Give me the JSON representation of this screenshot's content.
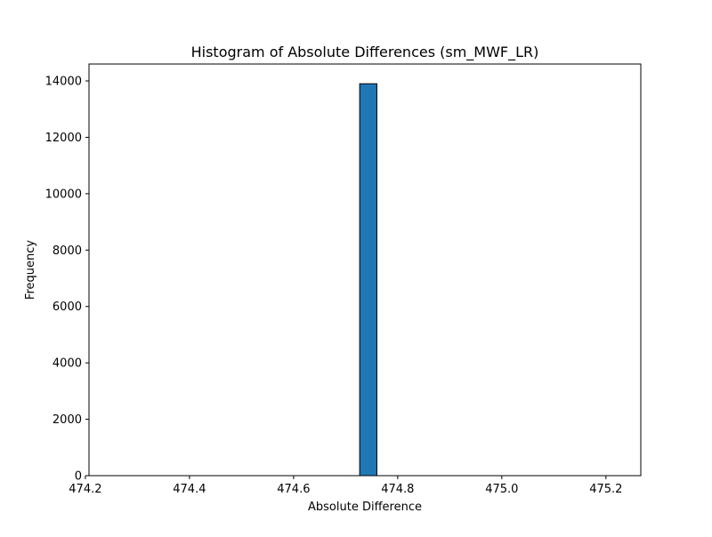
{
  "chart_data": {
    "type": "bar",
    "subtype": "histogram",
    "title": "Histogram of Absolute Differences (sm_MWF_LR)",
    "xlabel": "Absolute Difference",
    "ylabel": "Frequency",
    "xlim": [
      474.207,
      475.267
    ],
    "ylim": [
      0,
      14600
    ],
    "xticks": [
      474.2,
      474.4,
      474.6,
      474.8,
      475.0,
      475.2
    ],
    "xtick_labels": [
      "474.2",
      "474.4",
      "474.6",
      "474.8",
      "475.0",
      "475.2"
    ],
    "yticks": [
      0,
      2000,
      4000,
      6000,
      8000,
      10000,
      12000,
      14000
    ],
    "ytick_labels": [
      "0",
      "2000",
      "4000",
      "6000",
      "8000",
      "10000",
      "12000",
      "14000"
    ],
    "bins": [
      {
        "x0": 474.227,
        "x1": 474.26,
        "count": 0
      },
      {
        "x0": 474.26,
        "x1": 474.293,
        "count": 0
      },
      {
        "x0": 474.293,
        "x1": 474.327,
        "count": 0
      },
      {
        "x0": 474.327,
        "x1": 474.36,
        "count": 0
      },
      {
        "x0": 474.36,
        "x1": 474.393,
        "count": 0
      },
      {
        "x0": 474.393,
        "x1": 474.427,
        "count": 0
      },
      {
        "x0": 474.427,
        "x1": 474.46,
        "count": 0
      },
      {
        "x0": 474.46,
        "x1": 474.493,
        "count": 0
      },
      {
        "x0": 474.493,
        "x1": 474.527,
        "count": 0
      },
      {
        "x0": 474.527,
        "x1": 474.56,
        "count": 0
      },
      {
        "x0": 474.56,
        "x1": 474.593,
        "count": 0
      },
      {
        "x0": 474.593,
        "x1": 474.627,
        "count": 0
      },
      {
        "x0": 474.627,
        "x1": 474.66,
        "count": 0
      },
      {
        "x0": 474.66,
        "x1": 474.693,
        "count": 0
      },
      {
        "x0": 474.693,
        "x1": 474.727,
        "count": 0
      },
      {
        "x0": 474.727,
        "x1": 474.76,
        "count": 13900
      },
      {
        "x0": 474.76,
        "x1": 474.793,
        "count": 0
      },
      {
        "x0": 474.793,
        "x1": 474.827,
        "count": 0
      },
      {
        "x0": 474.827,
        "x1": 474.86,
        "count": 0
      },
      {
        "x0": 474.86,
        "x1": 474.893,
        "count": 0
      },
      {
        "x0": 474.893,
        "x1": 474.927,
        "count": 0
      },
      {
        "x0": 474.927,
        "x1": 474.96,
        "count": 0
      },
      {
        "x0": 474.96,
        "x1": 474.993,
        "count": 0
      },
      {
        "x0": 474.993,
        "x1": 475.027,
        "count": 0
      },
      {
        "x0": 475.027,
        "x1": 475.06,
        "count": 0
      },
      {
        "x0": 475.06,
        "x1": 475.093,
        "count": 0
      },
      {
        "x0": 475.093,
        "x1": 475.127,
        "count": 0
      },
      {
        "x0": 475.127,
        "x1": 475.16,
        "count": 0
      },
      {
        "x0": 475.16,
        "x1": 475.193,
        "count": 0
      },
      {
        "x0": 475.193,
        "x1": 475.227,
        "count": 0
      }
    ],
    "bar_color": "#1f77b4",
    "edge_color": "#000000",
    "grid": false,
    "legend": "none"
  }
}
